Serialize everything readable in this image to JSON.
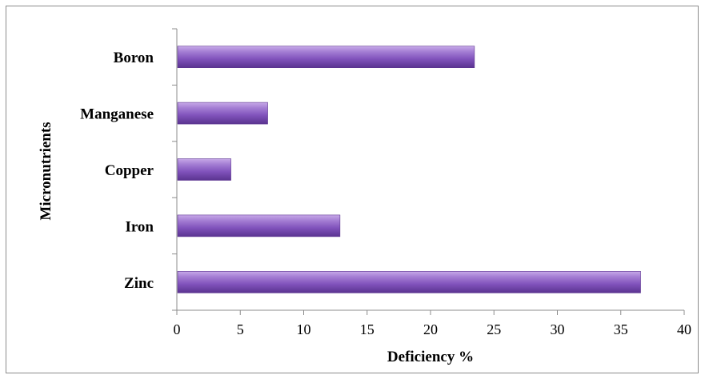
{
  "chart_data": {
    "type": "bar",
    "orientation": "horizontal",
    "categories": [
      "Zinc",
      "Iron",
      "Copper",
      "Manganese",
      "Boron"
    ],
    "values": [
      36.5,
      12.8,
      4.2,
      7.1,
      23.4
    ],
    "xlabel": "Deficiency %",
    "ylabel": "Micronutrients",
    "xlim": [
      0,
      40
    ],
    "xticks": [
      0,
      5,
      10,
      15,
      20,
      25,
      30,
      35,
      40
    ],
    "grid": false,
    "legend": "none",
    "colors": {
      "bar_light": "#b895dd",
      "bar_mid": "#8456bd",
      "bar_dark": "#5d3591",
      "axis": "#8c8c8c"
    }
  }
}
